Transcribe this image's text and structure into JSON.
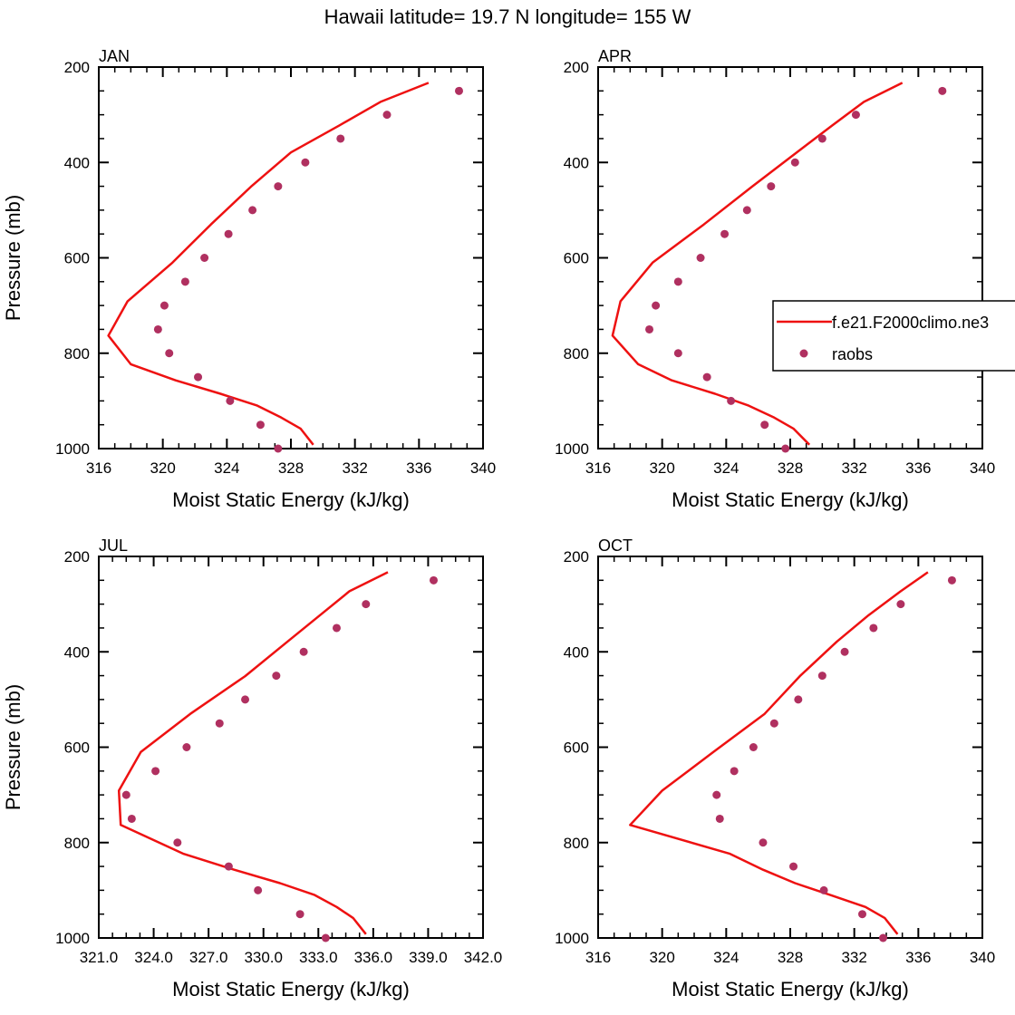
{
  "figure": {
    "title": "Hawaii  latitude= 19.7 N longitude= 155 W"
  },
  "colors": {
    "model": "#ee1111",
    "obs": "#b03060",
    "axis": "#000000"
  },
  "legend": {
    "entries": [
      "f.e21.F2000climo.ne3",
      "raobs"
    ],
    "panel": 1
  },
  "chart_data": [
    {
      "type": "line",
      "panel_label": "JAN",
      "xlabel": "Moist Static Energy (kJ/kg)",
      "ylabel": "Pressure (mb)",
      "xlim": [
        316,
        340
      ],
      "ylim": [
        1000,
        200
      ],
      "y_reversed": true,
      "xticks": [
        316,
        320,
        324,
        328,
        332,
        336,
        340
      ],
      "xtick_labels": [
        "316",
        "320",
        "324",
        "328",
        "332",
        "336",
        "340"
      ],
      "yticks": [
        200,
        400,
        600,
        800,
        1000
      ],
      "ytick_labels": [
        "200",
        "400",
        "600",
        "800",
        "1000"
      ],
      "series": [
        {
          "name": "f.e21.F2000climo.ne3",
          "style": "line",
          "points": [
            [
              329.4,
              992
            ],
            [
              328.6,
              958
            ],
            [
              327.4,
              935
            ],
            [
              325.9,
              910
            ],
            [
              323.6,
              885
            ],
            [
              320.8,
              857
            ],
            [
              318.0,
              823
            ],
            [
              316.6,
              763
            ],
            [
              317.8,
              691
            ],
            [
              320.6,
              610
            ],
            [
              323.0,
              530
            ],
            [
              325.5,
              451
            ],
            [
              328.0,
              379
            ],
            [
              331.0,
              323
            ],
            [
              333.6,
              273
            ],
            [
              336.6,
              233
            ]
          ]
        },
        {
          "name": "raobs",
          "style": "markers",
          "points": [
            [
              327.2,
              1000
            ],
            [
              326.1,
              950
            ],
            [
              324.2,
              900
            ],
            [
              322.2,
              850
            ],
            [
              320.4,
              800
            ],
            [
              319.7,
              750
            ],
            [
              320.1,
              700
            ],
            [
              321.4,
              650
            ],
            [
              322.6,
              600
            ],
            [
              324.1,
              550
            ],
            [
              325.6,
              500
            ],
            [
              327.2,
              450
            ],
            [
              328.9,
              400
            ],
            [
              331.1,
              350
            ],
            [
              334.0,
              300
            ],
            [
              338.5,
              250
            ]
          ]
        }
      ]
    },
    {
      "type": "line",
      "panel_label": "APR",
      "xlabel": "Moist Static Energy (kJ/kg)",
      "ylabel": "",
      "xlim": [
        316,
        340
      ],
      "ylim": [
        1000,
        200
      ],
      "y_reversed": true,
      "xticks": [
        316,
        320,
        324,
        328,
        332,
        336,
        340
      ],
      "xtick_labels": [
        "316",
        "320",
        "324",
        "328",
        "332",
        "336",
        "340"
      ],
      "yticks": [
        200,
        400,
        600,
        800,
        1000
      ],
      "ytick_labels": [
        "200",
        "400",
        "600",
        "800",
        "1000"
      ],
      "series": [
        {
          "name": "f.e21.F2000climo.ne3",
          "style": "line",
          "points": [
            [
              329.2,
              992
            ],
            [
              328.2,
              958
            ],
            [
              327.0,
              935
            ],
            [
              325.4,
              910
            ],
            [
              323.3,
              885
            ],
            [
              320.6,
              857
            ],
            [
              318.5,
              823
            ],
            [
              316.9,
              763
            ],
            [
              317.4,
              691
            ],
            [
              319.4,
              610
            ],
            [
              322.6,
              530
            ],
            [
              325.6,
              451
            ],
            [
              328.4,
              379
            ],
            [
              330.6,
              323
            ],
            [
              332.6,
              273
            ],
            [
              335.0,
              233
            ]
          ]
        },
        {
          "name": "raobs",
          "style": "markers",
          "points": [
            [
              327.7,
              1000
            ],
            [
              326.4,
              950
            ],
            [
              324.3,
              900
            ],
            [
              322.8,
              850
            ],
            [
              321.0,
              800
            ],
            [
              319.2,
              750
            ],
            [
              319.6,
              700
            ],
            [
              321.0,
              650
            ],
            [
              322.4,
              600
            ],
            [
              323.9,
              550
            ],
            [
              325.3,
              500
            ],
            [
              326.8,
              450
            ],
            [
              328.3,
              400
            ],
            [
              330.0,
              350
            ],
            [
              332.1,
              300
            ],
            [
              337.5,
              250
            ]
          ]
        }
      ]
    },
    {
      "type": "line",
      "panel_label": "JUL",
      "xlabel": "Moist Static Energy (kJ/kg)",
      "ylabel": "Pressure (mb)",
      "xlim": [
        321,
        342
      ],
      "ylim": [
        1000,
        200
      ],
      "y_reversed": true,
      "xticks": [
        321,
        324,
        327,
        330,
        333,
        336,
        339,
        342
      ],
      "xtick_labels": [
        "321.0",
        "324.0",
        "327.0",
        "330.0",
        "333.0",
        "336.0",
        "339.0",
        "342.0"
      ],
      "yticks": [
        200,
        400,
        600,
        800,
        1000
      ],
      "ytick_labels": [
        "200",
        "400",
        "600",
        "800",
        "1000"
      ],
      "series": [
        {
          "name": "f.e21.F2000climo.ne3",
          "style": "line",
          "points": [
            [
              335.6,
              992
            ],
            [
              334.9,
              958
            ],
            [
              334.0,
              935
            ],
            [
              332.8,
              910
            ],
            [
              330.9,
              885
            ],
            [
              328.4,
              857
            ],
            [
              325.6,
              823
            ],
            [
              322.2,
              763
            ],
            [
              322.1,
              691
            ],
            [
              323.3,
              610
            ],
            [
              326.0,
              530
            ],
            [
              329.0,
              451
            ],
            [
              331.3,
              379
            ],
            [
              333.1,
              323
            ],
            [
              334.7,
              273
            ],
            [
              336.8,
              233
            ]
          ]
        },
        {
          "name": "raobs",
          "style": "markers",
          "points": [
            [
              333.4,
              1000
            ],
            [
              332.0,
              950
            ],
            [
              329.7,
              900
            ],
            [
              328.1,
              850
            ],
            [
              325.3,
              800
            ],
            [
              322.8,
              750
            ],
            [
              322.5,
              700
            ],
            [
              324.1,
              650
            ],
            [
              325.8,
              600
            ],
            [
              327.6,
              550
            ],
            [
              329.0,
              500
            ],
            [
              330.7,
              450
            ],
            [
              332.2,
              400
            ],
            [
              334.0,
              350
            ],
            [
              335.6,
              300
            ],
            [
              339.3,
              250
            ]
          ]
        }
      ]
    },
    {
      "type": "line",
      "panel_label": "OCT",
      "xlabel": "Moist Static Energy (kJ/kg)",
      "ylabel": "",
      "xlim": [
        316,
        340
      ],
      "ylim": [
        1000,
        200
      ],
      "y_reversed": true,
      "xticks": [
        316,
        320,
        324,
        328,
        332,
        336,
        340
      ],
      "xtick_labels": [
        "316",
        "320",
        "324",
        "328",
        "332",
        "336",
        "340"
      ],
      "yticks": [
        200,
        400,
        600,
        800,
        1000
      ],
      "ytick_labels": [
        "200",
        "400",
        "600",
        "800",
        "1000"
      ],
      "series": [
        {
          "name": "f.e21.F2000climo.ne3",
          "style": "line",
          "points": [
            [
              334.7,
              992
            ],
            [
              333.9,
              958
            ],
            [
              332.7,
              935
            ],
            [
              330.5,
              910
            ],
            [
              328.3,
              885
            ],
            [
              326.3,
              857
            ],
            [
              324.2,
              823
            ],
            [
              318.0,
              763
            ],
            [
              320.0,
              691
            ],
            [
              323.2,
              610
            ],
            [
              326.4,
              530
            ],
            [
              328.6,
              451
            ],
            [
              330.9,
              379
            ],
            [
              332.9,
              323
            ],
            [
              334.9,
              273
            ],
            [
              336.6,
              233
            ]
          ]
        },
        {
          "name": "raobs",
          "style": "markers",
          "points": [
            [
              333.8,
              1000
            ],
            [
              332.5,
              950
            ],
            [
              330.1,
              900
            ],
            [
              328.2,
              850
            ],
            [
              326.3,
              800
            ],
            [
              323.6,
              750
            ],
            [
              323.4,
              700
            ],
            [
              324.5,
              650
            ],
            [
              325.7,
              600
            ],
            [
              327.0,
              550
            ],
            [
              328.5,
              500
            ],
            [
              330.0,
              450
            ],
            [
              331.4,
              400
            ],
            [
              333.2,
              350
            ],
            [
              334.9,
              300
            ],
            [
              338.1,
              250
            ]
          ]
        }
      ]
    }
  ]
}
